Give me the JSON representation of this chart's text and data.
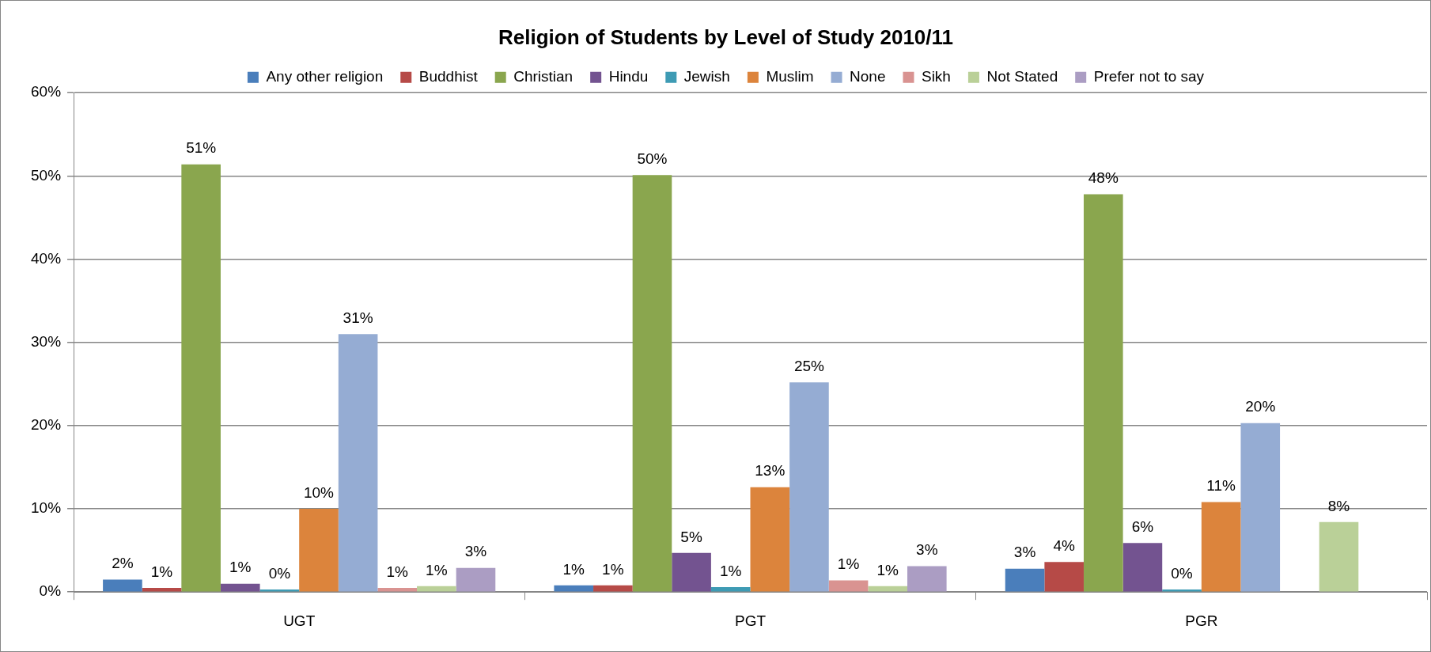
{
  "chart_data": {
    "type": "bar",
    "title": "Religion of Students by Level of Study 2010/11",
    "categories": [
      "UGT",
      "PGT",
      "PGR"
    ],
    "series": [
      {
        "name": "Any other religion",
        "color": "#4a7ebb",
        "values": [
          1.5,
          0.8,
          2.8
        ],
        "value_labels": [
          "2%",
          "1%",
          "3%"
        ]
      },
      {
        "name": "Buddhist",
        "color": "#b64a47",
        "values": [
          0.5,
          0.8,
          3.6
        ],
        "value_labels": [
          "1%",
          "1%",
          "4%"
        ]
      },
      {
        "name": "Christian",
        "color": "#8aa64e",
        "values": [
          51.4,
          50.1,
          47.8
        ],
        "value_labels": [
          "51%",
          "50%",
          "48%"
        ]
      },
      {
        "name": "Hindu",
        "color": "#735390",
        "values": [
          1.0,
          4.7,
          5.9
        ],
        "value_labels": [
          "1%",
          "5%",
          "6%"
        ]
      },
      {
        "name": "Jewish",
        "color": "#3e9bb4",
        "values": [
          0.3,
          0.6,
          0.3
        ],
        "value_labels": [
          "0%",
          "1%",
          "0%"
        ]
      },
      {
        "name": "Muslim",
        "color": "#dc843c",
        "values": [
          10.0,
          12.6,
          10.8
        ],
        "value_labels": [
          "10%",
          "13%",
          "11%"
        ]
      },
      {
        "name": "None",
        "color": "#95acd3",
        "values": [
          31.0,
          25.2,
          20.3
        ],
        "value_labels": [
          "31%",
          "25%",
          "20%"
        ]
      },
      {
        "name": "Sikh",
        "color": "#d99391",
        "values": [
          0.5,
          1.4,
          null
        ],
        "value_labels": [
          "1%",
          "1%",
          null
        ]
      },
      {
        "name": "Not Stated",
        "color": "#bad098",
        "values": [
          0.7,
          0.7,
          8.4
        ],
        "value_labels": [
          "1%",
          "1%",
          "8%"
        ]
      },
      {
        "name": "Prefer not to say",
        "color": "#ab9dc3",
        "values": [
          2.9,
          3.1,
          null
        ],
        "value_labels": [
          "3%",
          "3%",
          null
        ]
      }
    ],
    "ylim": [
      0,
      60
    ],
    "yticks": [
      {
        "value": 0,
        "label": "0%"
      },
      {
        "value": 10,
        "label": "10%"
      },
      {
        "value": 20,
        "label": "20%"
      },
      {
        "value": 30,
        "label": "30%"
      },
      {
        "value": 40,
        "label": "40%"
      },
      {
        "value": 50,
        "label": "50%"
      },
      {
        "value": 60,
        "label": "60%"
      }
    ],
    "grid": "y",
    "legend": "top"
  }
}
